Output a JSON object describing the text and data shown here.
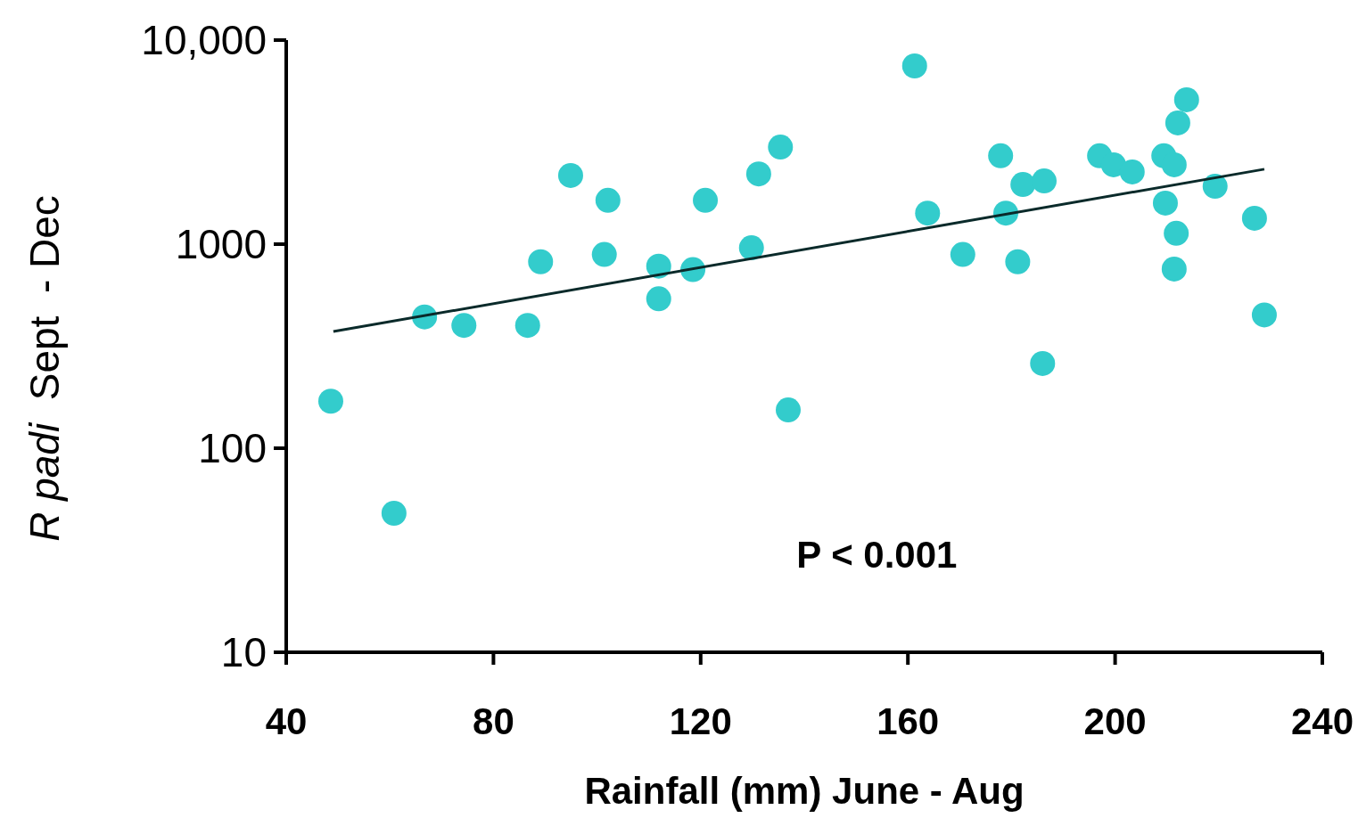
{
  "chart_data": {
    "type": "scatter",
    "xlabel": "Rainfall (mm) June - Aug",
    "ylabel": "R padi  Sept  - Dec",
    "log": "y",
    "xlim": [
      40,
      240
    ],
    "ylim": [
      10,
      10000
    ],
    "xticks": [
      40,
      80,
      120,
      160,
      200,
      240
    ],
    "yticks": [
      10,
      100,
      1000,
      {
        "value": 10000,
        "label": "10,000"
      }
    ],
    "grid": false,
    "marker": "circle",
    "annotations": [
      "P < 0.001"
    ],
    "series": [
      {
        "color": "#33cccc",
        "x": [
          48.6,
          60.8,
          66.7,
          74.3,
          86.6,
          89.1,
          94.9,
          101.4,
          102.1,
          111.9,
          111.9,
          118.5,
          120.9,
          129.8,
          131.2,
          135.4,
          136.9,
          161.3,
          163.8,
          170.6,
          177.9,
          178.9,
          181.2,
          182.2,
          186.3,
          186.0,
          197,
          199.7,
          203.3,
          209.4,
          211.4,
          209.7,
          211.8,
          211.4,
          212.1,
          213.8,
          219.3,
          226.9,
          228.8
        ],
        "values": [
          170,
          48,
          440,
          400,
          400,
          820,
          2170,
          890,
          1640,
          780,
          540,
          750,
          1640,
          960,
          2210,
          2990,
          154,
          7470,
          1420,
          890,
          2710,
          1420,
          820,
          1960,
          2040,
          260,
          2710,
          2450,
          2260,
          2710,
          2450,
          1590,
          1130,
          755,
          3930,
          5100,
          1920,
          1340,
          450
        ]
      },
      {
        "type": "line",
        "marker": "none",
        "color": "#0a2a2a",
        "x": [
          49.1,
          228.8
        ],
        "values": [
          373,
          2330
        ]
      }
    ]
  }
}
